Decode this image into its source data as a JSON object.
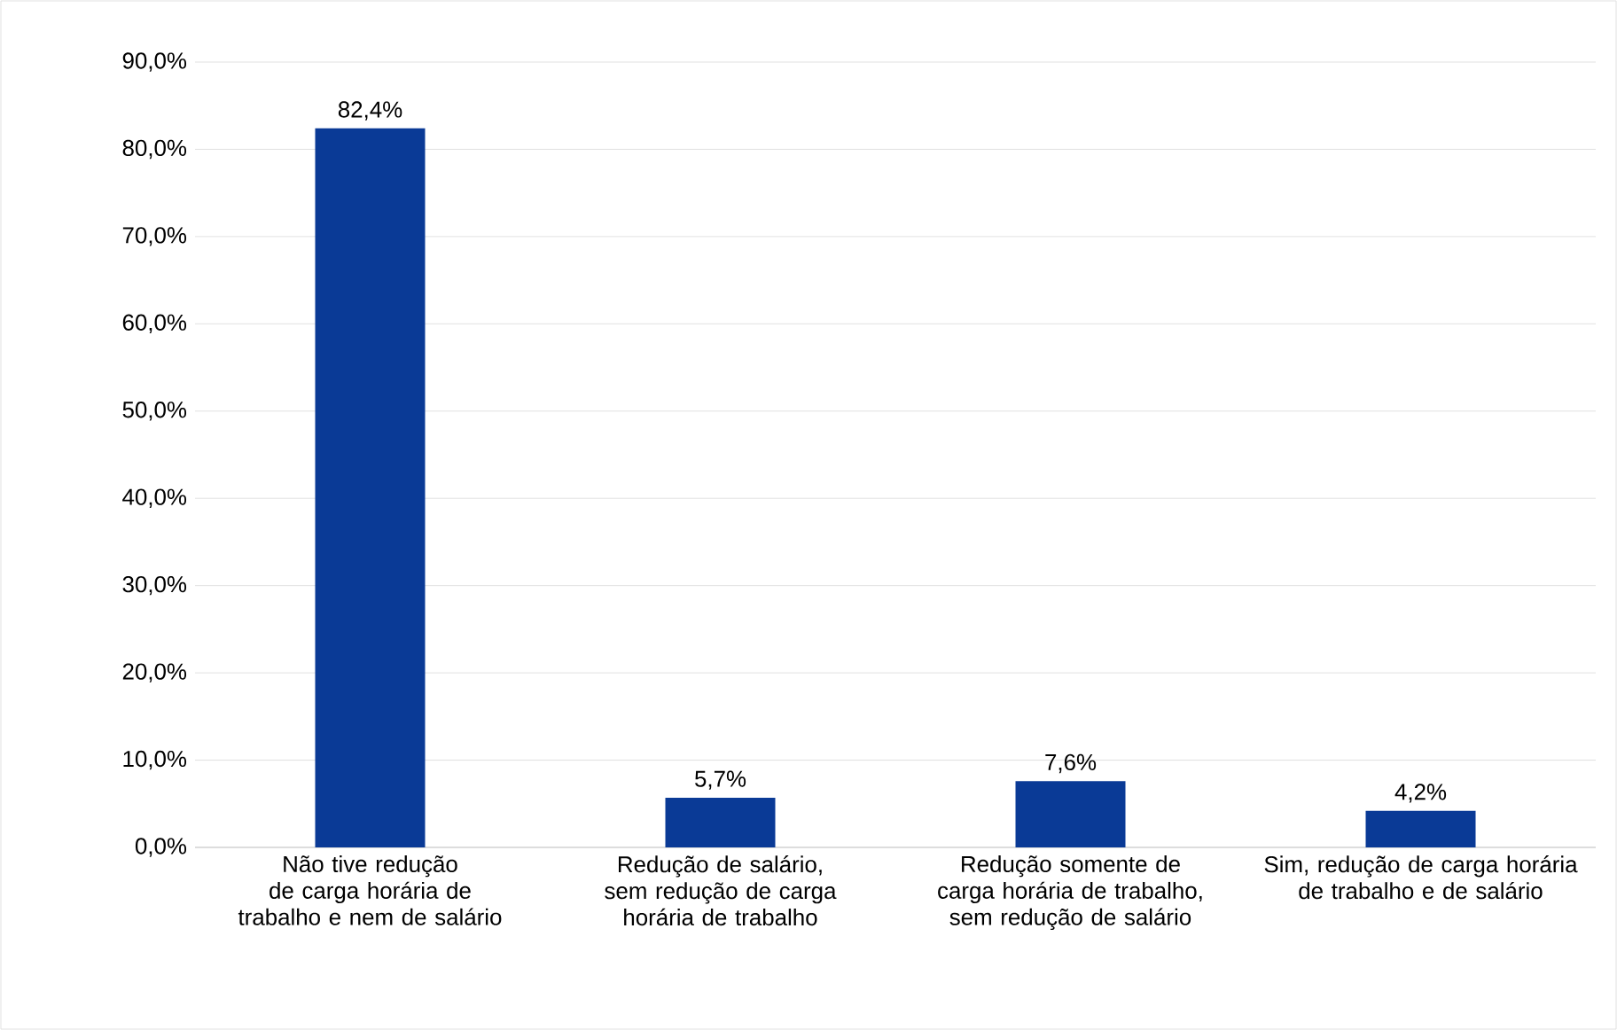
{
  "chart_data": {
    "type": "bar",
    "categories": [
      "Não tive redução de carga horária de trabalho e nem de salário",
      "Redução de salário, sem redução de carga horária de trabalho",
      "Redução somente de carga horária de trabalho, sem redução de salário",
      "Sim, redução de carga horária de trabalho e de salário"
    ],
    "values": [
      82.4,
      5.7,
      7.6,
      4.2
    ],
    "value_labels": [
      "82,4%",
      "5,7%",
      "7,6%",
      "4,2%"
    ],
    "color": "#0a3a96",
    "ylim": [
      0,
      90
    ],
    "yticks": [
      {
        "value": 0,
        "label": "0,0%"
      },
      {
        "value": 10,
        "label": "10,0%"
      },
      {
        "value": 20,
        "label": "20,0%"
      },
      {
        "value": 30,
        "label": "30,0%"
      },
      {
        "value": 40,
        "label": "40,0%"
      },
      {
        "value": 50,
        "label": "50,0%"
      },
      {
        "value": 60,
        "label": "60,0%"
      },
      {
        "value": 70,
        "label": "70,0%"
      },
      {
        "value": 80,
        "label": "80,0%"
      },
      {
        "value": 90,
        "label": "90,0%"
      }
    ],
    "grid": "y"
  }
}
